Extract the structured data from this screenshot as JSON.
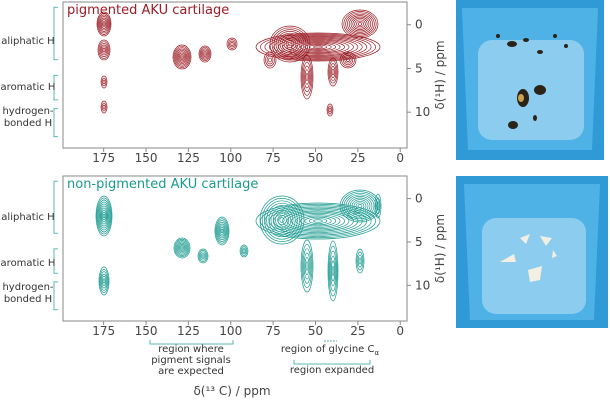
{
  "panels": [
    {
      "title": "pigmented AKU cartilage",
      "color": "#9b1c24",
      "groups": [
        [
          "aliphatic H"
        ],
        [
          "aromatic H"
        ],
        [
          "hydrogen-",
          "bonded H"
        ]
      ]
    },
    {
      "title": "non-pigmented AKU cartilage",
      "color": "#1a9a8f",
      "groups": [
        [
          "aliphatic H"
        ],
        [
          "aromatic H"
        ],
        [
          "hydrogen-",
          "bonded H"
        ]
      ]
    }
  ],
  "x_axis": {
    "label": "δ(¹³ C) / ppm",
    "ticks": [
      175,
      150,
      125,
      100,
      75,
      50,
      25,
      0
    ],
    "lim": [
      199,
      -4
    ]
  },
  "y_axis": {
    "label": "δ(¹H) / ppm",
    "ticks": [
      0,
      5,
      10
    ],
    "lim": [
      -2.6,
      14.1
    ]
  },
  "annotations": {
    "pigment_region": [
      "region where",
      "pigment signals",
      "are expected"
    ],
    "glycine": {
      "text": "region of glycine C",
      "subscript": "α"
    },
    "expanded": "region expanded"
  }
}
